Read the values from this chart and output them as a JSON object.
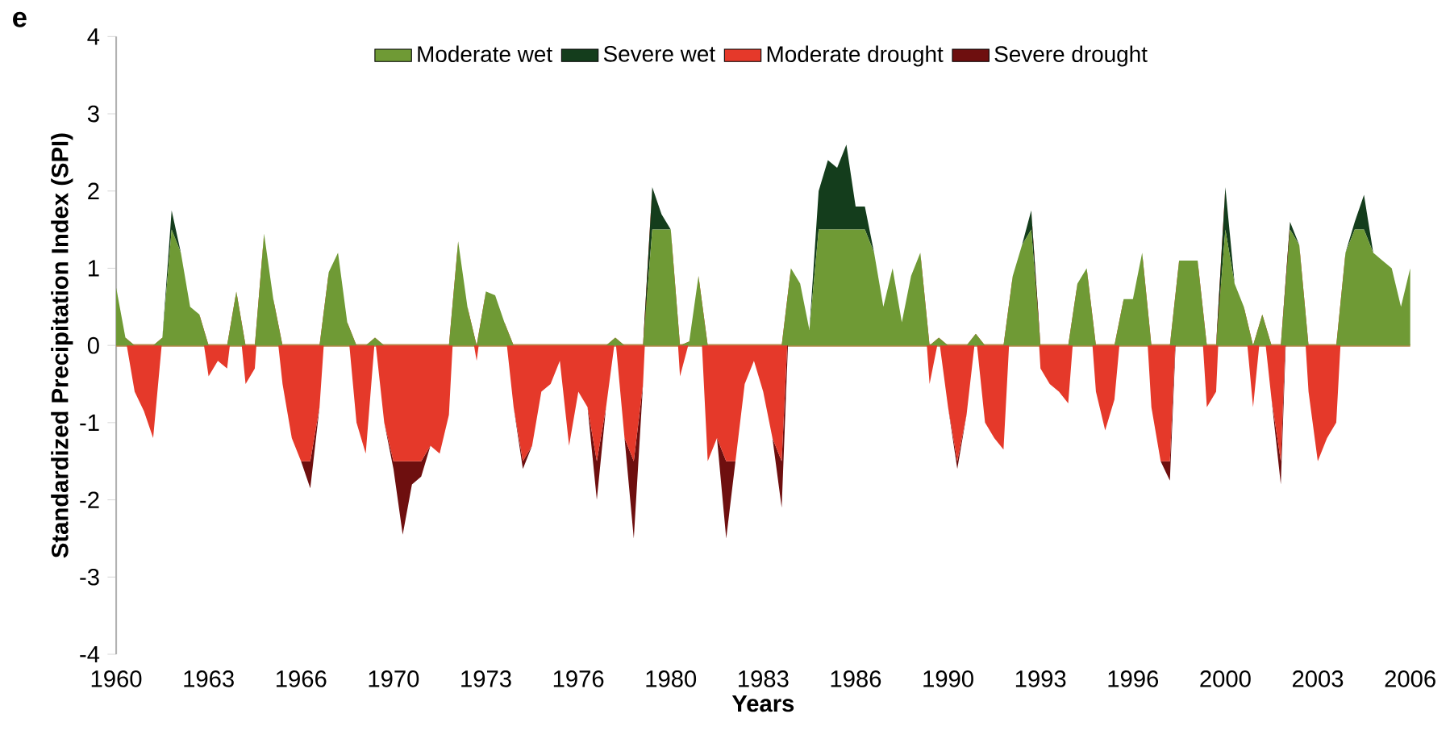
{
  "chart_data": {
    "type": "area",
    "stacked": true,
    "legend": "top",
    "xlabel": "Years",
    "ylabel": "Standardized Precipitation Index (SPI)",
    "annotations": [
      "e"
    ],
    "ylim": [
      -4,
      4
    ],
    "yticks": [
      -4,
      -3,
      -2,
      -1,
      0,
      1,
      2,
      3,
      4
    ],
    "ref_lines": [
      {
        "axis": "y",
        "value": 0,
        "color": "#b5894b"
      }
    ],
    "categories": [
      "1960",
      null,
      null,
      null,
      null,
      null,
      null,
      null,
      null,
      null,
      "1963",
      null,
      null,
      null,
      null,
      null,
      null,
      null,
      null,
      null,
      "1966",
      null,
      null,
      null,
      null,
      null,
      null,
      null,
      null,
      null,
      "1970",
      null,
      null,
      null,
      null,
      null,
      null,
      null,
      null,
      null,
      "1973",
      null,
      null,
      null,
      null,
      null,
      null,
      null,
      null,
      null,
      "1976",
      null,
      null,
      null,
      null,
      null,
      null,
      null,
      null,
      null,
      "1980",
      null,
      null,
      null,
      null,
      null,
      null,
      null,
      null,
      null,
      "1983",
      null,
      null,
      null,
      null,
      null,
      null,
      null,
      null,
      null,
      "1986",
      null,
      null,
      null,
      null,
      null,
      null,
      null,
      null,
      null,
      "1990",
      null,
      null,
      null,
      null,
      null,
      null,
      null,
      null,
      null,
      "1993",
      null,
      null,
      null,
      null,
      null,
      null,
      null,
      null,
      null,
      "1996",
      null,
      null,
      null,
      null,
      null,
      null,
      null,
      null,
      null,
      "2000",
      null,
      null,
      null,
      null,
      null,
      null,
      null,
      null,
      null,
      "2003",
      null,
      null,
      null,
      null,
      null,
      null,
      null,
      null,
      null,
      "2006"
    ],
    "series": [
      {
        "name": "Moderate wet",
        "color": "#6f9a35",
        "values": [
          0.75,
          0.1,
          0,
          0,
          0,
          0.1,
          1.5,
          1.2,
          0.5,
          0.4,
          0,
          0,
          0,
          0.7,
          0,
          0,
          1.45,
          0.6,
          0,
          0,
          0,
          0,
          0,
          0.95,
          1.2,
          0.3,
          0,
          0,
          0.1,
          0,
          0,
          0,
          0,
          0,
          0,
          0,
          0,
          1.35,
          0.5,
          0,
          0.7,
          0.65,
          0.3,
          0,
          0,
          0,
          0,
          0,
          0,
          0,
          0,
          0,
          0,
          0,
          0.1,
          0,
          0,
          0,
          1.5,
          1.5,
          1.5,
          0,
          0.05,
          0.9,
          0,
          0,
          0,
          0,
          0,
          0,
          0,
          0,
          0,
          1.0,
          0.8,
          0.2,
          1.5,
          1.5,
          1.5,
          1.5,
          1.5,
          1.5,
          1.2,
          0.5,
          1.0,
          0.3,
          0.9,
          1.2,
          0,
          0.1,
          0,
          0,
          0,
          0.15,
          0,
          0,
          0,
          0.9,
          1.3,
          1.5,
          0,
          0,
          0,
          0,
          0.8,
          1.0,
          0,
          0,
          0,
          0.6,
          0.6,
          1.2,
          0,
          0,
          0,
          1.1,
          1.1,
          1.1,
          0,
          0,
          1.5,
          0.8,
          0.5,
          0,
          0.4,
          0,
          0,
          1.5,
          1.3,
          0,
          0,
          0,
          0,
          1.2,
          1.5,
          1.5,
          1.2,
          1.1,
          1.0,
          0.5,
          1.0
        ]
      },
      {
        "name": "Severe wet",
        "color": "#143d1c",
        "values": [
          0,
          0,
          0,
          0,
          0,
          0,
          0.25,
          0,
          0,
          0,
          0,
          0,
          0,
          0,
          0,
          0,
          0,
          0,
          0,
          0,
          0,
          0,
          0,
          0,
          0,
          0,
          0,
          0,
          0,
          0,
          0,
          0,
          0,
          0,
          0,
          0,
          0,
          0,
          0,
          0,
          0,
          0,
          0,
          0,
          0,
          0,
          0,
          0,
          0,
          0,
          0,
          0,
          0,
          0,
          0,
          0,
          0,
          0,
          0.55,
          0.2,
          0,
          0,
          0,
          0,
          0,
          0,
          0,
          0,
          0,
          0,
          0,
          0,
          0,
          0,
          0,
          0,
          0.5,
          0.9,
          0.8,
          1.1,
          0.3,
          0.3,
          0,
          0,
          0,
          0,
          0,
          0,
          0,
          0,
          0,
          0,
          0,
          0,
          0,
          0,
          0,
          0,
          0,
          0.25,
          0,
          0,
          0,
          0,
          0,
          0,
          0,
          0,
          0,
          0,
          0,
          0,
          0,
          0,
          0,
          0,
          0,
          0,
          0,
          0,
          0.55,
          0,
          0,
          0,
          0,
          0,
          0,
          0.1,
          0,
          0,
          0,
          0,
          0,
          0,
          0.1,
          0.45,
          0,
          0,
          0,
          0,
          0
        ]
      },
      {
        "name": "Moderate drought",
        "color": "#e5392a",
        "values": [
          0,
          0,
          -0.6,
          -0.85,
          -1.2,
          0,
          0,
          0,
          0,
          0,
          -0.4,
          -0.2,
          -0.3,
          0,
          -0.5,
          -0.3,
          0,
          0,
          -0.5,
          -1.2,
          -1.5,
          -1.5,
          -0.8,
          0,
          0,
          0,
          -1.0,
          -1.4,
          0,
          -1.0,
          -1.5,
          -1.5,
          -1.5,
          -1.5,
          -1.3,
          -1.4,
          -0.9,
          0,
          0,
          -0.2,
          0,
          0,
          0,
          -0.8,
          -1.5,
          -1.3,
          -0.6,
          -0.5,
          -0.2,
          -1.3,
          -0.6,
          -0.8,
          -1.5,
          -0.8,
          0,
          -1.2,
          -1.5,
          -0.5,
          0,
          0,
          0,
          -0.4,
          0,
          0,
          -1.5,
          -1.2,
          -1.5,
          -1.5,
          -0.5,
          -0.2,
          -0.6,
          -1.2,
          -1.5,
          0,
          0,
          0,
          0,
          0,
          0,
          0,
          0,
          0,
          0,
          0,
          0,
          0,
          0,
          0,
          -0.5,
          0,
          -0.8,
          -1.5,
          -0.9,
          0,
          -1.0,
          -1.2,
          -1.35,
          0,
          0,
          0,
          -0.3,
          -0.5,
          -0.6,
          -0.75,
          0,
          0,
          -0.6,
          -1.1,
          -0.7,
          0,
          0,
          0,
          -0.8,
          -1.5,
          -1.5,
          0,
          0,
          0,
          -0.8,
          -0.6,
          0,
          0,
          0,
          -0.8,
          0,
          -0.7,
          -1.5,
          0,
          0,
          -0.6,
          -1.5,
          -1.2,
          -1.0,
          0,
          0,
          0,
          0,
          0,
          0,
          0,
          0
        ]
      },
      {
        "name": "Severe drought",
        "color": "#6e0f0f",
        "values": [
          0,
          0,
          0,
          0,
          0,
          0,
          0,
          0,
          0,
          0,
          0,
          0,
          0,
          0,
          0,
          0,
          0,
          0,
          0,
          0,
          0,
          -0.35,
          0,
          0,
          0,
          0,
          0,
          0,
          0,
          0,
          -0.1,
          -0.95,
          -0.3,
          -0.2,
          0,
          0,
          0,
          0,
          0,
          0,
          0,
          0,
          0,
          0,
          -0.1,
          0,
          0,
          0,
          0,
          0,
          0,
          0,
          -0.5,
          0,
          0,
          0,
          -1.0,
          0,
          0,
          0,
          0,
          0,
          0,
          0,
          0,
          0,
          -1.0,
          0,
          0,
          0,
          0,
          0,
          -0.6,
          0,
          0,
          0,
          0,
          0,
          0,
          0,
          0,
          0,
          0,
          0,
          0,
          0,
          0,
          0,
          0,
          0,
          0,
          -0.1,
          0,
          0,
          0,
          0,
          0,
          0,
          0,
          0,
          0,
          0,
          0,
          0,
          0,
          0,
          0,
          0,
          0,
          0,
          0,
          0,
          0,
          0,
          -0.25,
          0,
          0,
          0,
          0,
          0,
          0,
          0,
          0,
          0,
          0,
          0,
          -0.3,
          0,
          0,
          0,
          0,
          0,
          0,
          0,
          0,
          0,
          0,
          0,
          0,
          0,
          0
        ]
      }
    ]
  }
}
